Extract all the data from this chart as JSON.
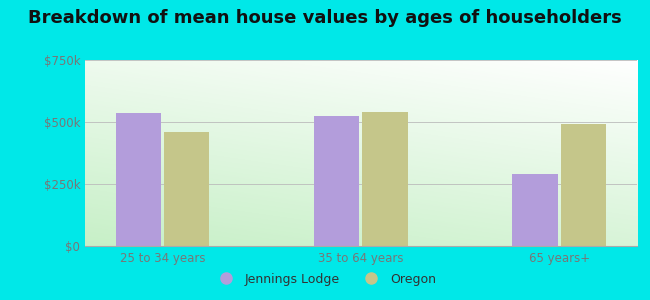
{
  "title": "Breakdown of mean house values by ages of householders",
  "categories": [
    "25 to 34 years",
    "35 to 64 years",
    "65 years+"
  ],
  "jennings_lodge": [
    535000,
    525000,
    290000
  ],
  "oregon": [
    460000,
    540000,
    490000
  ],
  "bar_color_jennings": "#b39ddb",
  "bar_color_oregon": "#c5c68a",
  "ylim": [
    0,
    750000
  ],
  "yticks": [
    0,
    250000,
    500000,
    750000
  ],
  "ytick_labels": [
    "$0",
    "$250k",
    "$500k",
    "$750k"
  ],
  "outer_bg": "#00e8e8",
  "legend_labels": [
    "Jennings Lodge",
    "Oregon"
  ],
  "bar_width": 0.32,
  "title_fontsize": 13
}
